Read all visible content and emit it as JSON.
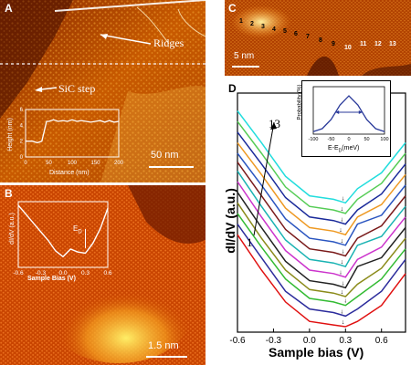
{
  "figure": {
    "panel_a": {
      "label": "A",
      "ridges_label": "Ridges",
      "step_label": "SiC step",
      "scale_bar": "50 nm",
      "inset": {
        "ylabel": "Height (nm)",
        "xlabel": "Distance (nm)",
        "yticks": [
          "0",
          "2",
          "4",
          "6"
        ],
        "xticks": [
          "0",
          "50",
          "100",
          "150",
          "200"
        ]
      }
    },
    "panel_b": {
      "label": "B",
      "scale_bar": "1.5 nm",
      "inset": {
        "ylabel": "dI/dV (a.u.)",
        "xlabel": "Sample Bias (V)",
        "xticks": [
          "-0.6",
          "-0.3",
          "0.0",
          "0.3",
          "0.6"
        ],
        "marker": "E",
        "marker_sub": "D"
      }
    },
    "panel_c": {
      "label": "C",
      "scale_bar": "5 nm",
      "numbers": [
        "1",
        "2",
        "3",
        "4",
        "5",
        "6",
        "7",
        "8",
        "9",
        "10",
        "11",
        "12",
        "13"
      ]
    },
    "panel_d": {
      "label": "D",
      "ylabel": "dI/dV (a.u.)",
      "xlabel": "Sample bias (V)",
      "xticks": [
        "-0.6",
        "-0.3",
        "0.0",
        "0.3",
        "0.6"
      ],
      "annot_top": "13",
      "annot_bottom": "1",
      "inset": {
        "ylabel": "Probability (%)",
        "xlabel": "E-E",
        "xlabel_sub": "D",
        "xlabel_unit": "(meV)",
        "xticks": [
          "-100",
          "-50",
          "0",
          "50",
          "100"
        ]
      }
    }
  },
  "chart_data": [
    {
      "type": "line",
      "title": "",
      "xlabel": "Distance (nm)",
      "ylabel": "Height (nm)",
      "xlim": [
        0,
        200
      ],
      "ylim": [
        0,
        6
      ],
      "series": [
        {
          "x": [
            0,
            15,
            25,
            35,
            45,
            50,
            60,
            70,
            80,
            90,
            100,
            110,
            120,
            130,
            140,
            150,
            160,
            170,
            180,
            190,
            200
          ],
          "y": [
            2.0,
            2.0,
            1.8,
            2.0,
            4.5,
            4.5,
            4.7,
            4.5,
            4.6,
            4.5,
            4.7,
            4.5,
            4.6,
            4.5,
            4.4,
            4.5,
            4.6,
            4.4,
            4.6,
            4.4,
            4.5
          ]
        }
      ]
    },
    {
      "type": "line",
      "title": "",
      "xlabel": "Sample Bias (V)",
      "ylabel": "dI/dV (a.u.)",
      "xlim": [
        -0.6,
        0.6
      ],
      "series": [
        {
          "x": [
            -0.6,
            -0.5,
            -0.4,
            -0.3,
            -0.2,
            -0.1,
            0.0,
            0.1,
            0.2,
            0.3,
            0.4,
            0.5,
            0.6
          ],
          "y": [
            1.0,
            0.85,
            0.7,
            0.55,
            0.4,
            0.22,
            0.12,
            0.25,
            0.2,
            0.18,
            0.35,
            0.6,
            0.95
          ]
        }
      ]
    },
    {
      "type": "line",
      "title": "",
      "xlabel": "E-E_D (meV)",
      "ylabel": "Probability (%)",
      "xlim": [
        -100,
        100
      ],
      "series": [
        {
          "x": [
            -100,
            -75,
            -50,
            -25,
            0,
            25,
            50,
            75,
            100
          ],
          "y": [
            0.02,
            0.1,
            0.35,
            0.75,
            1.0,
            0.75,
            0.35,
            0.1,
            0.02
          ]
        }
      ]
    },
    {
      "type": "line",
      "title": "",
      "xlabel": "Sample bias (V)",
      "ylabel": "dI/dV (a.u.)",
      "xlim": [
        -0.6,
        0.8
      ],
      "dirac_points_V": [
        0.28,
        0.27,
        0.3,
        0.27,
        0.28,
        0.26,
        0.27,
        0.28,
        0.27,
        0.26,
        0.27,
        0.27,
        0.28
      ],
      "series": [
        {
          "color": "#e01010",
          "x": [
            -0.6,
            -0.4,
            -0.2,
            0.0,
            0.2,
            0.3,
            0.4,
            0.6,
            0.8
          ],
          "y": [
            0.52,
            0.32,
            0.14,
            0.03,
            0.01,
            0.0,
            0.03,
            0.12,
            0.3
          ]
        },
        {
          "color": "#2c2c9c",
          "x": [
            -0.6,
            -0.4,
            -0.2,
            0.0,
            0.2,
            0.3,
            0.4,
            0.6,
            0.8
          ],
          "y": [
            0.58,
            0.39,
            0.2,
            0.1,
            0.08,
            0.06,
            0.1,
            0.2,
            0.38
          ]
        },
        {
          "color": "#33bb33",
          "x": [
            -0.6,
            -0.4,
            -0.2,
            0.0,
            0.2,
            0.3,
            0.4,
            0.6,
            0.8
          ],
          "y": [
            0.64,
            0.45,
            0.27,
            0.16,
            0.14,
            0.12,
            0.17,
            0.27,
            0.44
          ]
        },
        {
          "color": "#8b8b1a",
          "x": [
            -0.6,
            -0.4,
            -0.2,
            0.0,
            0.2,
            0.3,
            0.4,
            0.6,
            0.8
          ],
          "y": [
            0.7,
            0.5,
            0.32,
            0.21,
            0.19,
            0.17,
            0.24,
            0.33,
            0.5
          ]
        },
        {
          "color": "#222222",
          "x": [
            -0.6,
            -0.4,
            -0.2,
            0.0,
            0.2,
            0.3,
            0.4,
            0.6,
            0.8
          ],
          "y": [
            0.76,
            0.56,
            0.37,
            0.26,
            0.24,
            0.22,
            0.34,
            0.39,
            0.56
          ]
        },
        {
          "color": "#cc33cc",
          "x": [
            -0.6,
            -0.4,
            -0.2,
            0.0,
            0.2,
            0.3,
            0.4,
            0.6,
            0.8
          ],
          "y": [
            0.82,
            0.62,
            0.43,
            0.32,
            0.3,
            0.28,
            0.38,
            0.45,
            0.62
          ]
        },
        {
          "color": "#1ab3b3",
          "x": [
            -0.6,
            -0.4,
            -0.2,
            0.0,
            0.2,
            0.3,
            0.4,
            0.6,
            0.8
          ],
          "y": [
            0.88,
            0.68,
            0.49,
            0.38,
            0.36,
            0.34,
            0.46,
            0.51,
            0.68
          ]
        },
        {
          "color": "#7a1a1a",
          "x": [
            -0.6,
            -0.4,
            -0.2,
            0.0,
            0.2,
            0.3,
            0.4,
            0.6,
            0.8
          ],
          "y": [
            0.93,
            0.74,
            0.55,
            0.44,
            0.42,
            0.4,
            0.5,
            0.57,
            0.74
          ]
        },
        {
          "color": "#2a55c0",
          "x": [
            -0.6,
            -0.4,
            -0.2,
            0.0,
            0.2,
            0.3,
            0.4,
            0.6,
            0.8
          ],
          "y": [
            0.98,
            0.8,
            0.61,
            0.5,
            0.48,
            0.46,
            0.58,
            0.63,
            0.8
          ]
        },
        {
          "color": "#ee9922",
          "x": [
            -0.6,
            -0.4,
            -0.2,
            0.0,
            0.2,
            0.3,
            0.4,
            0.6,
            0.8
          ],
          "y": [
            1.04,
            0.86,
            0.67,
            0.56,
            0.54,
            0.52,
            0.62,
            0.69,
            0.86
          ]
        },
        {
          "color": "#1a2a9a",
          "x": [
            -0.6,
            -0.4,
            -0.2,
            0.0,
            0.2,
            0.3,
            0.4,
            0.6,
            0.8
          ],
          "y": [
            1.1,
            0.92,
            0.73,
            0.62,
            0.6,
            0.58,
            0.66,
            0.75,
            0.92
          ]
        },
        {
          "color": "#55cc55",
          "x": [
            -0.6,
            -0.4,
            -0.2,
            0.0,
            0.2,
            0.3,
            0.4,
            0.6,
            0.8
          ],
          "y": [
            1.16,
            0.98,
            0.79,
            0.68,
            0.66,
            0.64,
            0.72,
            0.81,
            0.98
          ]
        },
        {
          "color": "#22dddd",
          "x": [
            -0.6,
            -0.4,
            -0.2,
            0.0,
            0.2,
            0.3,
            0.4,
            0.6,
            0.8
          ],
          "y": [
            1.22,
            1.04,
            0.85,
            0.74,
            0.72,
            0.7,
            0.78,
            0.87,
            1.04
          ]
        }
      ]
    }
  ]
}
